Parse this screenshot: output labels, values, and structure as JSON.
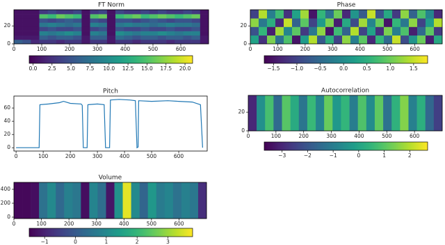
{
  "chart_data": [
    {
      "type": "heatmap",
      "title": "FT Norm",
      "colormap": "viridis",
      "xlim": [
        0,
        700
      ],
      "xticks": [
        0,
        100,
        200,
        300,
        400,
        500,
        600
      ],
      "ylim": [
        0,
        38
      ],
      "yticks": [
        0,
        20
      ],
      "zlim": [
        -0.5,
        21
      ],
      "zticks": [
        {
          "value": 0,
          "label": "0.0"
        },
        {
          "value": 2.5,
          "label": "2.5"
        },
        {
          "value": 5,
          "label": "5.0"
        },
        {
          "value": 7.5,
          "label": "7.5"
        },
        {
          "value": 10,
          "label": "10.0"
        },
        {
          "value": 12.5,
          "label": "12.5"
        },
        {
          "value": 15,
          "label": "15.0"
        },
        {
          "value": 17.5,
          "label": "17.5"
        },
        {
          "value": 20,
          "label": "20.0"
        }
      ],
      "z": [
        [
          6,
          5,
          2,
          3,
          3,
          2,
          3,
          3,
          1,
          3,
          3,
          1,
          3,
          3,
          2,
          3,
          3,
          3,
          2,
          3,
          3,
          3,
          1
        ],
        [
          1,
          1,
          1,
          6,
          5,
          6,
          6,
          5,
          1,
          6,
          6,
          1,
          7,
          6,
          5,
          6,
          6,
          5,
          6,
          6,
          5,
          6,
          1
        ],
        [
          0.5,
          0.5,
          0.5,
          9,
          8,
          9,
          10,
          9,
          0.5,
          9,
          8,
          0.5,
          10,
          9,
          8,
          9,
          9,
          10,
          9,
          8,
          9,
          9,
          0.5
        ],
        [
          0.5,
          0.5,
          0.5,
          4,
          5,
          4,
          4,
          5,
          0.5,
          4,
          5,
          0.5,
          5,
          4,
          4,
          5,
          4,
          4,
          5,
          4,
          4,
          5,
          0.5
        ],
        [
          0.5,
          0.5,
          0.5,
          8,
          9,
          8,
          7,
          8,
          0.5,
          9,
          8,
          0.5,
          8,
          9,
          8,
          8,
          7,
          8,
          9,
          8,
          8,
          7,
          0.5
        ],
        [
          0.5,
          0.5,
          0.5,
          5,
          4,
          5,
          6,
          5,
          0.5,
          5,
          4,
          0.5,
          5,
          5,
          4,
          5,
          6,
          5,
          4,
          5,
          5,
          4,
          0.5
        ],
        [
          0.5,
          0.5,
          0.5,
          15,
          14,
          16,
          15,
          14,
          0.5,
          15,
          16,
          0.5,
          14,
          15,
          16,
          14,
          15,
          16,
          15,
          14,
          15,
          16,
          0.5
        ],
        [
          0.5,
          0.5,
          0.5,
          3,
          4,
          3,
          3,
          4,
          0.5,
          3,
          4,
          0.5,
          4,
          3,
          3,
          4,
          3,
          4,
          3,
          3,
          4,
          3,
          0.5
        ]
      ]
    },
    {
      "type": "heatmap",
      "title": "Phase",
      "colormap": "viridis",
      "xlim": [
        0,
        700
      ],
      "xticks": [
        0,
        100,
        200,
        300,
        400,
        500,
        600
      ],
      "ylim": [
        0,
        38
      ],
      "yticks": [
        0,
        20
      ],
      "zlim": [
        -1.7,
        1.8
      ],
      "zticks": [
        {
          "value": -1.5,
          "label": "−1.5"
        },
        {
          "value": -1,
          "label": "−1.0"
        },
        {
          "value": -0.5,
          "label": "−0.5"
        },
        {
          "value": 0,
          "label": "0.0"
        },
        0.5,
        {
          "value": 1,
          "label": "1.0"
        },
        1.5
      ],
      "z": [
        [
          0.3,
          -1.2,
          1.1,
          -0.4,
          0.8,
          -1.5,
          0.2,
          1.4,
          -0.7,
          0.5,
          -1.0,
          1.2,
          -0.2,
          0.9,
          -1.3,
          0.6,
          -0.5,
          1.5,
          -0.9,
          0.1,
          1.0,
          -1.4,
          0.4
        ],
        [
          -0.8,
          0.6,
          -1.4,
          1.3,
          -0.1,
          0.9,
          -1.1,
          -0.3,
          1.2,
          -1.5,
          0.7,
          -0.6,
          1.4,
          -1.0,
          0.3,
          -1.2,
          1.1,
          -0.2,
          0.8,
          -1.4,
          -0.5,
          0.9,
          -1.1
        ],
        [
          1.2,
          -0.3,
          0.5,
          -1.3,
          1.5,
          -0.6,
          0.9,
          -1.0,
          0.2,
          1.1,
          -1.4,
          0.4,
          -0.9,
          1.3,
          -0.1,
          1.0,
          -1.5,
          0.6,
          -0.3,
          1.2,
          -1.0,
          0.2,
          1.4
        ],
        [
          -1.0,
          1.4,
          -0.2,
          0.7,
          -1.2,
          0.3,
          1.3,
          -1.5,
          0.6,
          -0.4,
          1.0,
          -1.3,
          0.1,
          -0.7,
          1.5,
          -0.8,
          0.4,
          -1.1,
          1.2,
          -0.6,
          0.8,
          -0.1,
          -1.3
        ]
      ]
    },
    {
      "type": "line",
      "title": "Pitch",
      "color": "#1f77b4",
      "xlim": [
        -8,
        705
      ],
      "xticks": [
        0,
        100,
        200,
        300,
        400,
        500,
        600
      ],
      "ylim": [
        -5,
        78
      ],
      "yticks": [
        0,
        20,
        40,
        60
      ],
      "x": [
        0,
        85,
        88,
        120,
        160,
        175,
        200,
        240,
        244,
        248,
        262,
        265,
        300,
        325,
        330,
        345,
        348,
        380,
        420,
        440,
        446,
        450,
        452,
        500,
        560,
        600,
        650,
        680,
        688
      ],
      "values": [
        0,
        0,
        65,
        66,
        68,
        70,
        67,
        66,
        64,
        0,
        0,
        65,
        66,
        65,
        0,
        0,
        72,
        73,
        72,
        71,
        0,
        1,
        71,
        70,
        71,
        70,
        69,
        65,
        0
      ]
    },
    {
      "type": "heatmap",
      "title": "Autocorrelation",
      "colormap": "viridis",
      "xlim": [
        0,
        700
      ],
      "xticks": [
        0,
        100,
        200,
        300,
        400,
        500,
        600
      ],
      "ylim": [
        0,
        38
      ],
      "yticks": [
        0,
        20
      ],
      "zlim": [
        -3.7,
        2.7
      ],
      "zticks": [
        {
          "value": -3,
          "label": "−3"
        },
        {
          "value": -2,
          "label": "−2"
        },
        {
          "value": -1,
          "label": "−1"
        },
        0,
        1,
        2
      ],
      "z": [
        [
          -3,
          -0.5,
          0.8,
          -1.5,
          1.0,
          0.2,
          -1.2,
          0.6,
          -0.8,
          1.2,
          -0.3,
          0.5,
          -1.0,
          0.9,
          -0.6,
          1.1,
          -1.3,
          0.4,
          1.5,
          -0.9,
          0.3,
          -1.6,
          -2.5
        ]
      ]
    },
    {
      "type": "heatmap",
      "title": "Volume",
      "colormap": "viridis",
      "xlim": [
        0,
        700
      ],
      "xticks": [
        0,
        100,
        200,
        300,
        400,
        500,
        600
      ],
      "ylim": [
        -20,
        500
      ],
      "yticks": [
        0,
        200,
        400
      ],
      "zlim": [
        -1.5,
        3.8
      ],
      "zticks": [
        {
          "value": -1,
          "label": "−1"
        },
        0,
        1,
        2,
        3
      ],
      "z": [
        [
          -1.4,
          -1.4,
          -1.3,
          0.5,
          1.0,
          0.3,
          0.8,
          0.6,
          -1.3,
          0.9,
          0.4,
          -1.2,
          1.2,
          3.6,
          1.0,
          0.2,
          1.3,
          0.7,
          0.9,
          0.5,
          0.8,
          0.6,
          -0.8
        ]
      ]
    }
  ]
}
